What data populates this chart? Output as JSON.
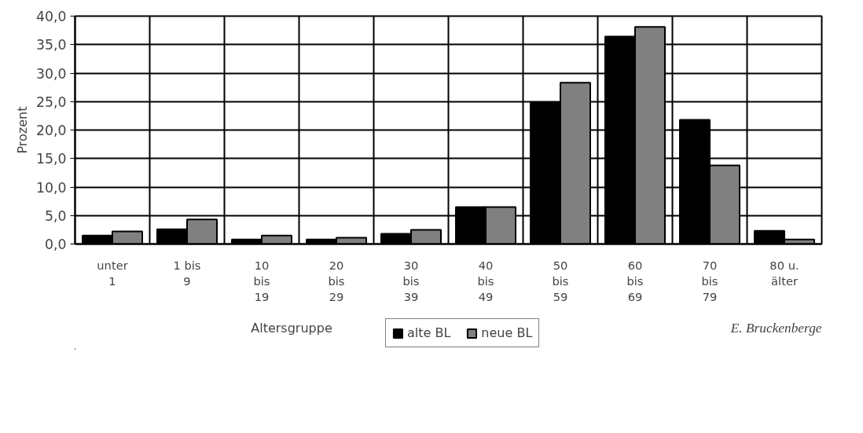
{
  "chart_data": {
    "type": "bar",
    "categories": [
      "unter\n1",
      "1 bis\n9",
      "10\nbis\n19",
      "20\nbis\n29",
      "30\nbis\n39",
      "40\nbis\n49",
      "50\nbis\n59",
      "60\nbis\n69",
      "70\nbis\n79",
      "80 u.\nälter"
    ],
    "series": [
      {
        "name": "alte BL",
        "color": "#000000",
        "values": [
          1.5,
          2.6,
          0.8,
          0.8,
          1.8,
          6.5,
          24.8,
          36.4,
          21.8,
          2.3
        ]
      },
      {
        "name": "neue BL",
        "color": "#808080",
        "values": [
          2.2,
          4.3,
          1.5,
          1.1,
          2.5,
          6.5,
          28.3,
          38.1,
          13.8,
          0.8
        ]
      }
    ],
    "xlabel": "Altersgruppe",
    "ylabel": "Prozent",
    "ylim": [
      0,
      40
    ],
    "yticks": [
      {
        "value": 0,
        "label": "0,0"
      },
      {
        "value": 5,
        "label": "5,0"
      },
      {
        "value": 10,
        "label": "10,0"
      },
      {
        "value": 15,
        "label": "15,0"
      },
      {
        "value": 20,
        "label": "20,0"
      },
      {
        "value": 25,
        "label": "25,0"
      },
      {
        "value": 30,
        "label": "30,0"
      },
      {
        "value": 35,
        "label": "35,0"
      },
      {
        "value": 40,
        "label": "40,0"
      }
    ],
    "grid": true,
    "legend": "bottom",
    "annotations": [
      "E. Bruckenberge"
    ]
  }
}
